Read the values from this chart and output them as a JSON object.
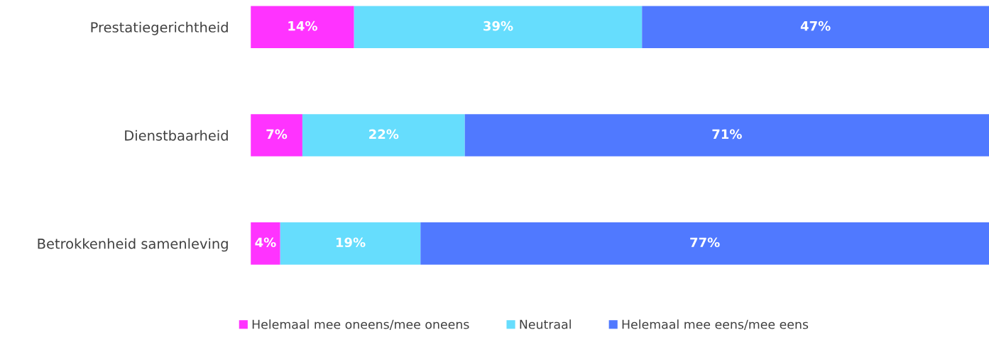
{
  "chart_data": {
    "type": "bar",
    "orientation": "horizontal",
    "stacked": true,
    "categories": [
      "Prestatiegerichtheid",
      "Dienstbaarheid",
      "Betrokkenheid samenleving"
    ],
    "series": [
      {
        "name": "Helemaal mee oneens/mee oneens",
        "color": "#ff33ff",
        "values": [
          14,
          7,
          4
        ],
        "value_labels": [
          "14%",
          "7%",
          "4%"
        ]
      },
      {
        "name": "Neutraal",
        "color": "#66ddfd",
        "values": [
          39,
          22,
          19
        ],
        "value_labels": [
          "39%",
          "22%",
          "19%"
        ]
      },
      {
        "name": "Helemaal mee eens/mee eens",
        "color": "#5079ff",
        "values": [
          47,
          71,
          77
        ],
        "value_labels": [
          "47%",
          "71%",
          "77%"
        ]
      }
    ],
    "xlim": [
      0,
      100
    ],
    "tick_labels": "y",
    "grid": false,
    "legend": "bottom"
  }
}
